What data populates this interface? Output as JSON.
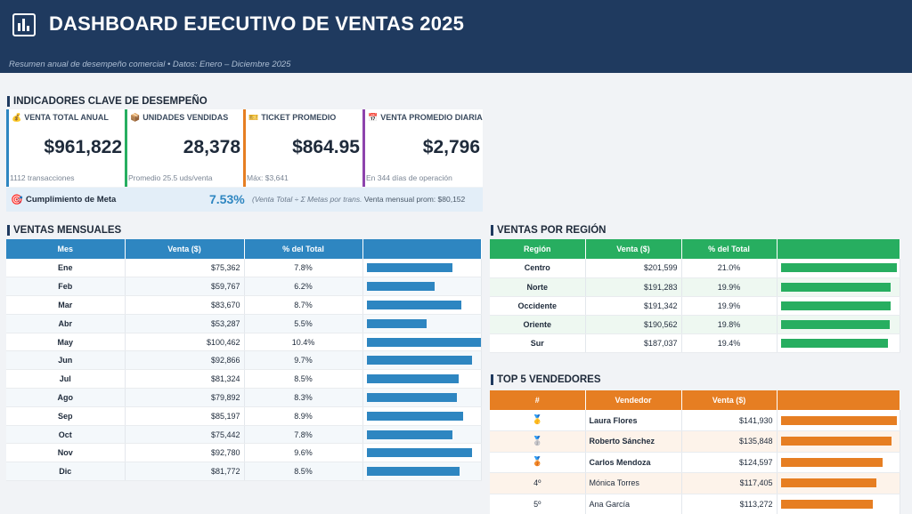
{
  "header": {
    "title": "DASHBOARD EJECUTIVO DE VENTAS 2025",
    "subtitle": "Resumen anual de desempeño comercial  •  Datos: Enero – Diciembre 2025"
  },
  "kpi_section_title": "INDICADORES CLAVE DE DESEMPEÑO",
  "kpis": [
    {
      "icon": "money-bag-icon",
      "glyph": "💰",
      "label": "VENTA TOTAL ANUAL",
      "value": "$961,822",
      "foot": "1112 transacciones",
      "color": "#2e86c1"
    },
    {
      "icon": "package-icon",
      "glyph": "📦",
      "label": "UNIDADES VENDIDAS",
      "value": "28,378",
      "foot": "Promedio 25.5 uds/venta",
      "color": "#27ae60"
    },
    {
      "icon": "ticket-icon",
      "glyph": "🎫",
      "label": "TICKET PROMEDIO",
      "value": "$864.95",
      "foot": "Máx: $3,641",
      "color": "#e67e22"
    },
    {
      "icon": "calendar-icon",
      "glyph": "📅",
      "label": "VENTA PROMEDIO DIARIA",
      "value": "$2,796",
      "foot": "En 344 días de operación",
      "color": "#8e44ad"
    }
  ],
  "meta": {
    "icon": "target-icon",
    "glyph": "🎯",
    "label": "Cumplimiento de Meta",
    "percent": "7.53%",
    "note": "(Venta Total ÷ Σ Metas por trans.",
    "monthly_avg": "Venta mensual prom: $80,152"
  },
  "monthly": {
    "title": "VENTAS MENSUALES",
    "headers": [
      "Mes",
      "Venta ($)",
      "% del Total",
      ""
    ],
    "rows": [
      {
        "mes": "Ene",
        "venta": "$75,362",
        "pct": "7.8%",
        "value": 75362
      },
      {
        "mes": "Feb",
        "venta": "$59,767",
        "pct": "6.2%",
        "value": 59767
      },
      {
        "mes": "Mar",
        "venta": "$83,670",
        "pct": "8.7%",
        "value": 83670
      },
      {
        "mes": "Abr",
        "venta": "$53,287",
        "pct": "5.5%",
        "value": 53287
      },
      {
        "mes": "May",
        "venta": "$100,462",
        "pct": "10.4%",
        "value": 100462
      },
      {
        "mes": "Jun",
        "venta": "$92,866",
        "pct": "9.7%",
        "value": 92866
      },
      {
        "mes": "Jul",
        "venta": "$81,324",
        "pct": "8.5%",
        "value": 81324
      },
      {
        "mes": "Ago",
        "venta": "$79,892",
        "pct": "8.3%",
        "value": 79892
      },
      {
        "mes": "Sep",
        "venta": "$85,197",
        "pct": "8.9%",
        "value": 85197
      },
      {
        "mes": "Oct",
        "venta": "$75,442",
        "pct": "7.8%",
        "value": 75442
      },
      {
        "mes": "Nov",
        "venta": "$92,780",
        "pct": "9.6%",
        "value": 92780
      },
      {
        "mes": "Dic",
        "venta": "$81,772",
        "pct": "8.5%",
        "value": 81772
      }
    ]
  },
  "regions": {
    "title": "VENTAS POR REGIÓN",
    "headers": [
      "Región",
      "Venta ($)",
      "% del Total",
      ""
    ],
    "rows": [
      {
        "region": "Centro",
        "venta": "$201,599",
        "pct": "21.0%",
        "value": 201599
      },
      {
        "region": "Norte",
        "venta": "$191,283",
        "pct": "19.9%",
        "value": 191283
      },
      {
        "region": "Occidente",
        "venta": "$191,342",
        "pct": "19.9%",
        "value": 191342
      },
      {
        "region": "Oriente",
        "venta": "$190,562",
        "pct": "19.8%",
        "value": 190562
      },
      {
        "region": "Sur",
        "venta": "$187,037",
        "pct": "19.4%",
        "value": 187037
      }
    ]
  },
  "sellers": {
    "title": "TOP 5 VENDEDORES",
    "headers": [
      "#",
      "Vendedor",
      "Venta ($)",
      ""
    ],
    "rows": [
      {
        "rank": "🥇",
        "name": "Laura Flores",
        "venta": "$141,930",
        "value": 141930,
        "medal": true
      },
      {
        "rank": "🥈",
        "name": "Roberto Sánchez",
        "venta": "$135,848",
        "value": 135848,
        "medal": true
      },
      {
        "rank": "🥉",
        "name": "Carlos Mendoza",
        "venta": "$124,597",
        "value": 124597,
        "medal": true
      },
      {
        "rank": "4º",
        "name": "Mónica Torres",
        "venta": "$117,405",
        "value": 117405,
        "medal": false
      },
      {
        "rank": "5º",
        "name": "Ana García",
        "venta": "$113,272",
        "value": 113272,
        "medal": false
      }
    ]
  }
}
